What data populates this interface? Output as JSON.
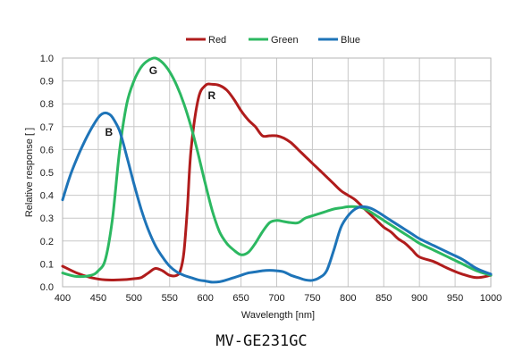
{
  "caption": "MV-GE231GC",
  "chart_data": {
    "type": "line",
    "xlabel": "Wavelength [nm]",
    "ylabel": "Relative response [ ]",
    "xlim": [
      400,
      1000
    ],
    "ylim": [
      0,
      1.0
    ],
    "xticks": [
      400,
      450,
      500,
      550,
      600,
      650,
      700,
      750,
      800,
      850,
      900,
      950,
      1000
    ],
    "yticks": [
      0.0,
      0.1,
      0.2,
      0.3,
      0.4,
      0.5,
      0.6,
      0.7,
      0.8,
      0.9,
      1.0
    ],
    "grid": true,
    "legend_position": "top-center",
    "series": [
      {
        "name": "Red",
        "color": "#b01c1c",
        "x": [
          400,
          420,
          440,
          460,
          480,
          500,
          510,
          520,
          530,
          540,
          550,
          560,
          565,
          570,
          575,
          580,
          590,
          600,
          610,
          620,
          630,
          640,
          650,
          660,
          670,
          680,
          690,
          700,
          710,
          720,
          730,
          740,
          750,
          760,
          770,
          780,
          790,
          800,
          810,
          820,
          830,
          840,
          850,
          860,
          870,
          880,
          890,
          900,
          920,
          940,
          960,
          980,
          1000
        ],
        "y": [
          0.09,
          0.06,
          0.04,
          0.03,
          0.03,
          0.035,
          0.04,
          0.06,
          0.08,
          0.07,
          0.05,
          0.05,
          0.07,
          0.15,
          0.35,
          0.6,
          0.82,
          0.88,
          0.885,
          0.88,
          0.86,
          0.82,
          0.77,
          0.73,
          0.7,
          0.66,
          0.66,
          0.66,
          0.65,
          0.63,
          0.6,
          0.57,
          0.54,
          0.51,
          0.48,
          0.45,
          0.42,
          0.4,
          0.38,
          0.35,
          0.32,
          0.29,
          0.26,
          0.24,
          0.21,
          0.19,
          0.16,
          0.13,
          0.11,
          0.08,
          0.055,
          0.04,
          0.05
        ]
      },
      {
        "name": "Green",
        "color": "#2cb861",
        "x": [
          400,
          420,
          440,
          450,
          460,
          470,
          480,
          490,
          500,
          510,
          520,
          530,
          540,
          550,
          560,
          570,
          580,
          590,
          600,
          610,
          620,
          630,
          640,
          650,
          660,
          670,
          680,
          690,
          700,
          710,
          720,
          730,
          740,
          750,
          760,
          770,
          780,
          790,
          800,
          810,
          820,
          830,
          840,
          850,
          860,
          870,
          880,
          890,
          900,
          920,
          940,
          960,
          980,
          1000
        ],
        "y": [
          0.06,
          0.045,
          0.05,
          0.07,
          0.12,
          0.3,
          0.6,
          0.8,
          0.9,
          0.96,
          0.99,
          1.0,
          0.98,
          0.94,
          0.88,
          0.8,
          0.7,
          0.58,
          0.45,
          0.33,
          0.24,
          0.19,
          0.16,
          0.14,
          0.15,
          0.19,
          0.24,
          0.28,
          0.29,
          0.285,
          0.28,
          0.28,
          0.3,
          0.31,
          0.32,
          0.33,
          0.34,
          0.345,
          0.35,
          0.35,
          0.345,
          0.33,
          0.31,
          0.29,
          0.27,
          0.25,
          0.23,
          0.21,
          0.19,
          0.16,
          0.13,
          0.1,
          0.07,
          0.05
        ]
      },
      {
        "name": "Blue",
        "color": "#1e74b8",
        "x": [
          400,
          410,
          420,
          430,
          440,
          450,
          455,
          460,
          465,
          470,
          480,
          490,
          500,
          510,
          520,
          530,
          540,
          550,
          560,
          570,
          580,
          590,
          600,
          610,
          620,
          630,
          640,
          650,
          660,
          670,
          680,
          690,
          700,
          710,
          720,
          730,
          740,
          750,
          760,
          770,
          780,
          790,
          800,
          810,
          820,
          830,
          840,
          850,
          860,
          870,
          880,
          890,
          900,
          920,
          940,
          960,
          980,
          1000
        ],
        "y": [
          0.38,
          0.48,
          0.56,
          0.63,
          0.69,
          0.74,
          0.755,
          0.76,
          0.755,
          0.74,
          0.68,
          0.57,
          0.45,
          0.34,
          0.25,
          0.18,
          0.13,
          0.09,
          0.065,
          0.05,
          0.04,
          0.03,
          0.025,
          0.02,
          0.022,
          0.03,
          0.04,
          0.05,
          0.06,
          0.065,
          0.07,
          0.072,
          0.07,
          0.065,
          0.05,
          0.04,
          0.03,
          0.028,
          0.04,
          0.07,
          0.16,
          0.26,
          0.31,
          0.34,
          0.35,
          0.345,
          0.33,
          0.31,
          0.29,
          0.27,
          0.25,
          0.23,
          0.21,
          0.18,
          0.15,
          0.12,
          0.08,
          0.055
        ]
      }
    ],
    "annotations": [
      {
        "text": "B",
        "x": 465,
        "y": 0.66
      },
      {
        "text": "G",
        "x": 527,
        "y": 0.93
      },
      {
        "text": "R",
        "x": 609,
        "y": 0.82
      }
    ]
  }
}
